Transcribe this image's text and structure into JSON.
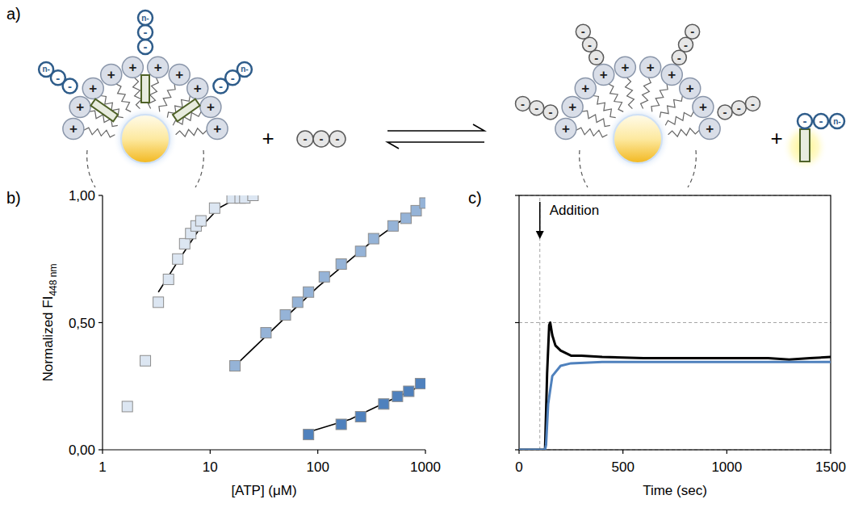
{
  "diagram": {
    "label": "a)",
    "operator": "+",
    "cation": "+",
    "anion": "-",
    "probe_terminus": "n-"
  },
  "chart_data": [
    {
      "type": "scatter",
      "panel_label": "b)",
      "x_label": "[ATP] (μM)",
      "y_label": "Normalized FI",
      "y_label_subscript": "448 nm",
      "log": "x",
      "xlim": [
        1,
        1000
      ],
      "xticks": [
        1,
        10,
        100,
        1000
      ],
      "ylim": [
        0,
        1
      ],
      "yticks": [
        {
          "value": 0,
          "label": "0,00"
        },
        {
          "value": 0.5,
          "label": "0,50"
        },
        {
          "value": 1,
          "label": "1,00"
        }
      ],
      "grid": false,
      "series": [
        {
          "type": "scatter",
          "color": "#dce6f2",
          "marker": "square",
          "x": [
            1.7,
            2.5,
            3.3,
            4.1,
            5,
            5.8,
            6.6,
            7.4,
            8.2,
            11,
            16,
            19,
            21,
            25
          ],
          "values": [
            0.17,
            0.35,
            0.58,
            0.67,
            0.75,
            0.81,
            0.85,
            0.88,
            0.9,
            0.95,
            0.99,
            0.99,
            0.99,
            1.0
          ]
        },
        {
          "type": "scatter",
          "color": "#95b3d7",
          "marker": "square",
          "x": [
            17,
            33,
            50,
            65,
            82,
            115,
            165,
            250,
            330,
            500,
            660,
            820,
            990
          ],
          "values": [
            0.33,
            0.46,
            0.53,
            0.58,
            0.62,
            0.68,
            0.73,
            0.78,
            0.83,
            0.88,
            0.91,
            0.94,
            0.97
          ]
        },
        {
          "type": "scatter",
          "color": "#4f81bd",
          "marker": "square",
          "x": [
            82,
            165,
            250,
            410,
            550,
            700,
            900
          ],
          "values": [
            0.06,
            0.1,
            0.13,
            0.18,
            0.21,
            0.23,
            0.26
          ]
        },
        {
          "type": "line",
          "color": "#000000",
          "line_style": "solid",
          "x": [
            3.3,
            5,
            8,
            12,
            18,
            25
          ],
          "values": [
            0.62,
            0.74,
            0.87,
            0.95,
            0.99,
            1.0
          ]
        },
        {
          "type": "line",
          "color": "#000000",
          "line_style": "solid",
          "x": [
            17,
            50,
            100,
            300,
            1000
          ],
          "values": [
            0.33,
            0.52,
            0.64,
            0.81,
            0.97
          ]
        },
        {
          "type": "line",
          "color": "#000000",
          "line_style": "solid",
          "x": [
            82,
            200,
            500,
            900
          ],
          "values": [
            0.07,
            0.12,
            0.2,
            0.25
          ]
        }
      ]
    },
    {
      "type": "line",
      "panel_label": "c)",
      "x_label": "Time (sec)",
      "xlim": [
        0,
        1500
      ],
      "xticks": [
        0,
        500,
        1000,
        1500
      ],
      "ylim": [
        0,
        1
      ],
      "yticks": [
        0,
        0.5,
        1
      ],
      "tick_labels": "x",
      "grid": true,
      "annotations": [
        {
          "text": "Addition",
          "x": 100
        }
      ],
      "series": [
        {
          "type": "line",
          "color": "#000000",
          "line_style": "solid",
          "x": [
            0,
            120,
            125,
            135,
            145,
            150,
            160,
            175,
            200,
            250,
            300,
            400,
            600,
            800,
            1000,
            1200,
            1300,
            1400,
            1500
          ],
          "values": [
            0,
            0,
            0,
            0.3,
            0.49,
            0.5,
            0.45,
            0.41,
            0.39,
            0.37,
            0.37,
            0.365,
            0.36,
            0.36,
            0.36,
            0.36,
            0.355,
            0.36,
            0.365
          ]
        },
        {
          "type": "line",
          "color": "#4f81bd",
          "line_style": "solid",
          "x": [
            0,
            125,
            130,
            140,
            160,
            200,
            250,
            400,
            600,
            1000,
            1500
          ],
          "values": [
            0,
            0,
            0.02,
            0.18,
            0.29,
            0.33,
            0.34,
            0.345,
            0.345,
            0.345,
            0.345
          ]
        }
      ]
    }
  ]
}
